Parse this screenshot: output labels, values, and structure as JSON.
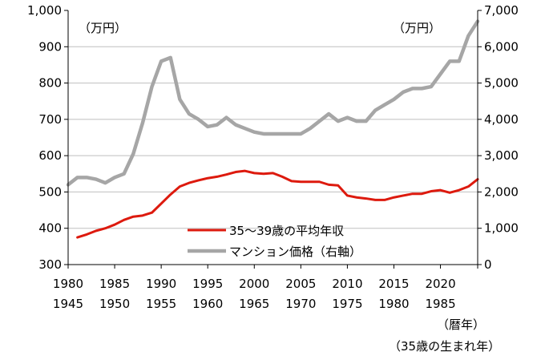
{
  "chart_data": {
    "type": "line",
    "left_axis": {
      "unit": "（万円）",
      "ylim": [
        300,
        1000
      ],
      "ticks": [
        "1,000",
        "900",
        "800",
        "700",
        "600",
        "500",
        "400",
        "300"
      ],
      "tick_values": [
        1000,
        900,
        800,
        700,
        600,
        500,
        400,
        300
      ]
    },
    "right_axis": {
      "unit": "（万円）",
      "ylim": [
        0,
        7000
      ],
      "ticks": [
        "7,000",
        "6,000",
        "5,000",
        "4,000",
        "3,000",
        "2,000",
        "1,000",
        "0"
      ],
      "tick_values": [
        7000,
        6000,
        5000,
        4000,
        3000,
        2000,
        1000,
        0
      ]
    },
    "x_axis": {
      "xlim": [
        1980,
        2024
      ],
      "ticks_row1": [
        "1980",
        "1985",
        "1990",
        "1995",
        "2000",
        "2005",
        "2010",
        "2015",
        "2020"
      ],
      "ticks_row2": [
        "1945",
        "1950",
        "1955",
        "1960",
        "1965",
        "1970",
        "1975",
        "1980",
        "1985"
      ],
      "tick_values": [
        1980,
        1985,
        1990,
        1995,
        2000,
        2005,
        2010,
        2015,
        2020
      ],
      "label_row1": "（暦年）",
      "label_row2": "（35歳の生まれ年）"
    },
    "gridlines": [
      900,
      800,
      700,
      600,
      500,
      400
    ],
    "legend_position": "lower-center",
    "series": [
      {
        "name": "35～39歳の平均年収",
        "axis": "left",
        "color": "#dd1a0e",
        "x": [
          1981,
          1982,
          1983,
          1984,
          1985,
          1986,
          1987,
          1988,
          1989,
          1990,
          1991,
          1992,
          1993,
          1994,
          1995,
          1996,
          1997,
          1998,
          1999,
          2000,
          2001,
          2002,
          2003,
          2004,
          2005,
          2006,
          2007,
          2008,
          2009,
          2010,
          2011,
          2012,
          2013,
          2014,
          2015,
          2016,
          2017,
          2018,
          2019,
          2020,
          2021,
          2022,
          2023,
          2024
        ],
        "values": [
          375,
          383,
          393,
          400,
          410,
          423,
          432,
          435,
          443,
          468,
          493,
          515,
          525,
          532,
          538,
          542,
          548,
          555,
          558,
          552,
          550,
          552,
          542,
          530,
          528,
          528,
          528,
          520,
          518,
          490,
          485,
          482,
          478,
          478,
          485,
          490,
          495,
          495,
          502,
          505,
          498,
          505,
          515,
          535
        ]
      },
      {
        "name": "マンション価格（右軸）",
        "axis": "right",
        "color": "#a6a6a6",
        "x": [
          1980,
          1981,
          1982,
          1983,
          1984,
          1985,
          1986,
          1987,
          1988,
          1989,
          1990,
          1991,
          1992,
          1993,
          1994,
          1995,
          1996,
          1997,
          1998,
          1999,
          2000,
          2001,
          2002,
          2003,
          2004,
          2005,
          2006,
          2007,
          2008,
          2009,
          2010,
          2011,
          2012,
          2013,
          2014,
          2015,
          2016,
          2017,
          2018,
          2019,
          2020,
          2021,
          2022,
          2023,
          2024
        ],
        "values": [
          2200,
          2400,
          2400,
          2350,
          2250,
          2400,
          2500,
          3050,
          3900,
          4900,
          5600,
          5700,
          4550,
          4150,
          4000,
          3800,
          3850,
          4050,
          3850,
          3750,
          3650,
          3600,
          3600,
          3600,
          3600,
          3600,
          3750,
          3950,
          4150,
          3950,
          4050,
          3950,
          3950,
          4250,
          4400,
          4550,
          4750,
          4850,
          4850,
          4900,
          5250,
          5600,
          5600,
          6300,
          6700
        ]
      }
    ]
  }
}
